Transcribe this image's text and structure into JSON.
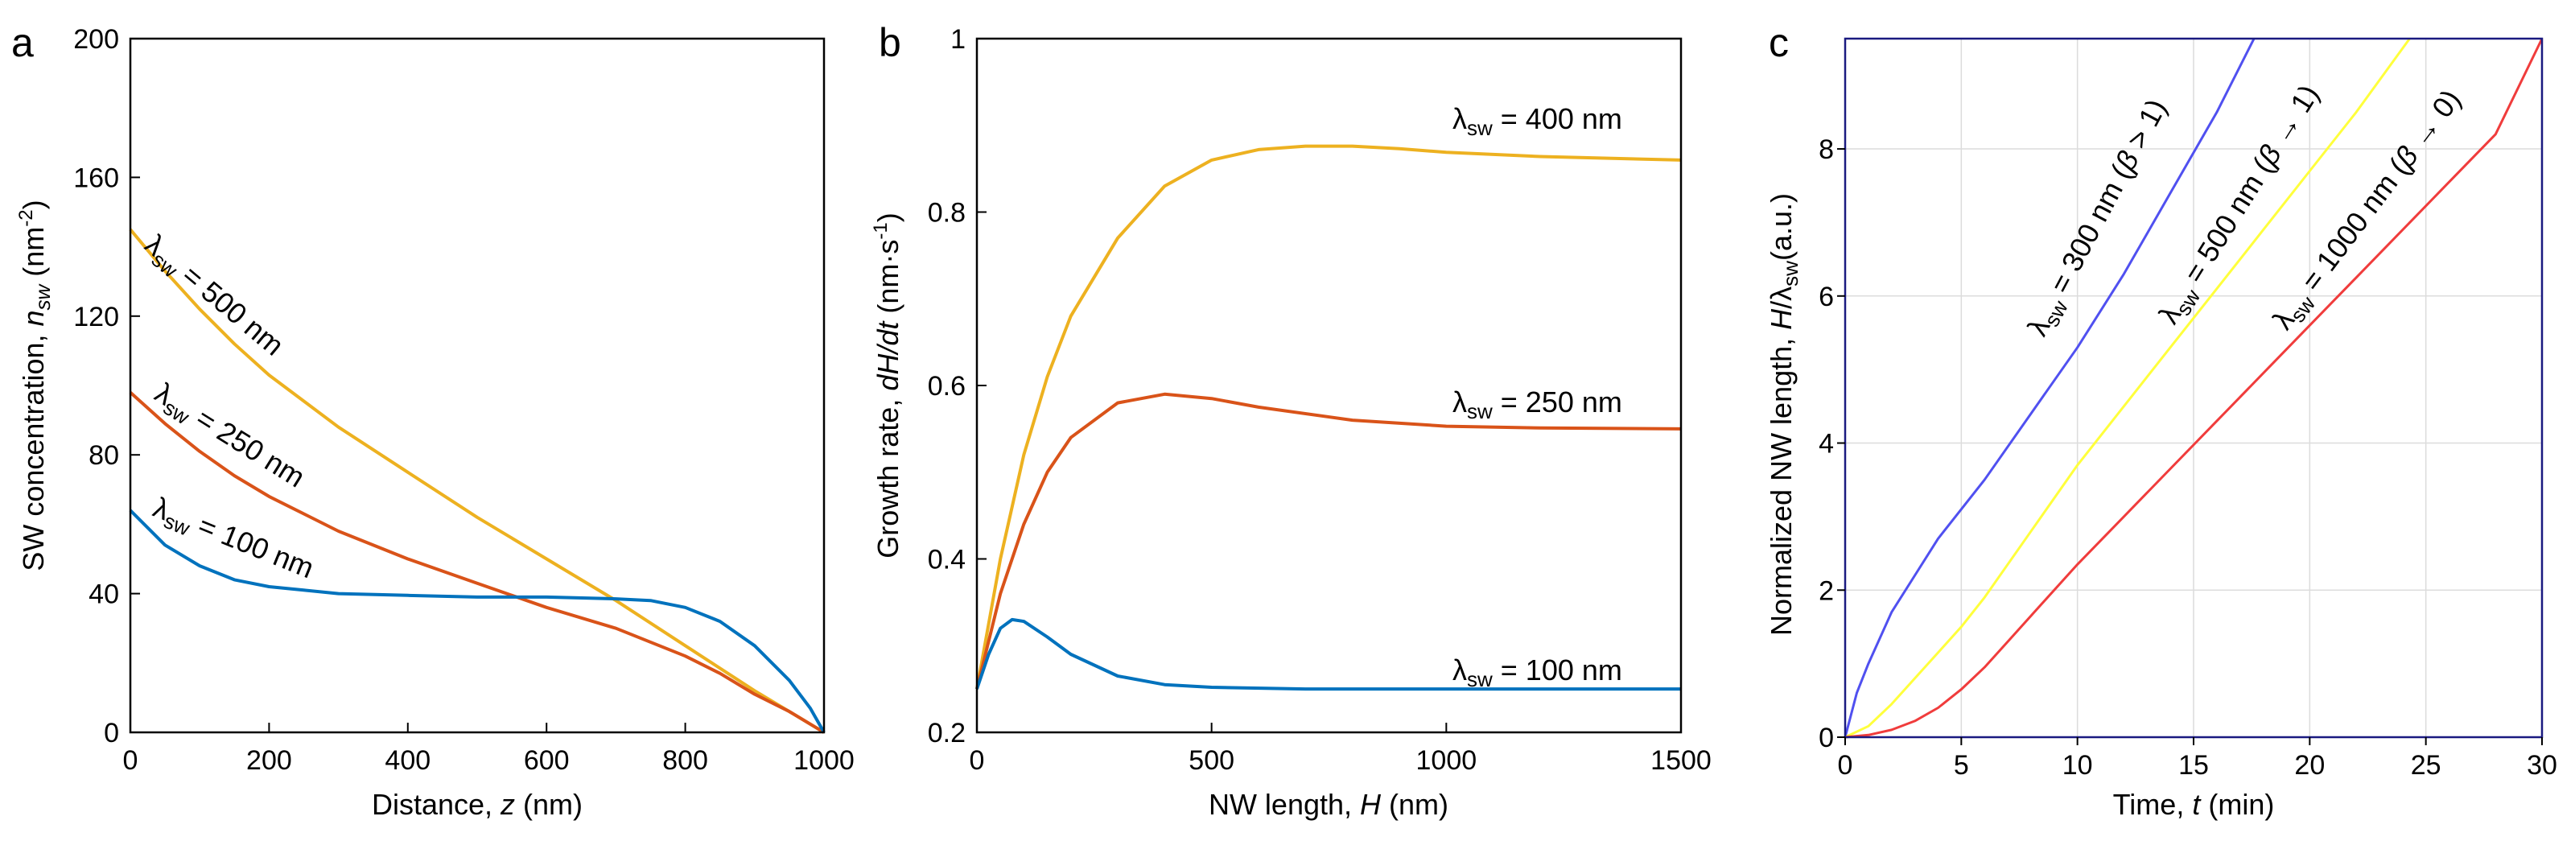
{
  "chart_data": [
    {
      "panel": "a",
      "type": "line",
      "xlabel": "Distance, z (nm)",
      "ylabel": "SW concentration, nsw (nm-2)",
      "ylabel_parts": {
        "pre": "SW concentration, ",
        "var": "n",
        "sub": "sw",
        "mid": " (nm",
        "sup": "-2",
        "post": ")"
      },
      "xlabel_parts": {
        "pre": "Distance, ",
        "var": "z",
        "post": " (nm)"
      },
      "xlim": [
        0,
        1000
      ],
      "ylim": [
        0,
        200
      ],
      "xticks": [
        0,
        200,
        400,
        600,
        800,
        1000
      ],
      "yticks": [
        0,
        40,
        80,
        120,
        160,
        200
      ],
      "series": [
        {
          "name": "λsw = 500 nm",
          "color": "#EDB120",
          "label": "= 500 nm",
          "x": [
            0,
            50,
            100,
            150,
            200,
            300,
            400,
            500,
            600,
            700,
            800,
            900,
            950,
            1000
          ],
          "y": [
            145,
            133,
            122,
            112,
            103,
            88,
            75,
            62,
            50,
            38,
            25,
            12,
            6,
            0
          ]
        },
        {
          "name": "λsw = 250 nm",
          "color": "#D95319",
          "label": "= 250 nm",
          "x": [
            0,
            50,
            100,
            150,
            200,
            300,
            400,
            500,
            600,
            700,
            800,
            850,
            900,
            950,
            1000
          ],
          "y": [
            98,
            89,
            81,
            74,
            68,
            58,
            50,
            43,
            36,
            30,
            22,
            17,
            11,
            6,
            0
          ]
        },
        {
          "name": "λsw = 100 nm",
          "color": "#0072BD",
          "label": "= 100 nm",
          "x": [
            0,
            50,
            100,
            150,
            200,
            250,
            300,
            400,
            500,
            600,
            700,
            750,
            800,
            850,
            900,
            950,
            980,
            1000
          ],
          "y": [
            64,
            54,
            48,
            44,
            42,
            41,
            40,
            39.5,
            39,
            39,
            38.5,
            38,
            36,
            32,
            25,
            15,
            7,
            0
          ]
        }
      ],
      "annotations": [
        {
          "sym": "λ",
          "sub": "sw",
          "text": "= 500 nm"
        },
        {
          "sym": "λ",
          "sub": "sw",
          "text": "= 250 nm"
        },
        {
          "sym": "λ",
          "sub": "sw",
          "text": "= 100 nm"
        }
      ]
    },
    {
      "panel": "b",
      "type": "line",
      "xlabel": "NW length, H (nm)",
      "ylabel": "Growth rate, dH/dt (nm·s-1)",
      "xlabel_parts": {
        "pre": "NW length,  ",
        "var": "H",
        "post": " (nm)"
      },
      "ylabel_parts": {
        "pre": "Growth  rate, ",
        "var": "dH/dt",
        "mid": " (nm·s",
        "sup": "-1",
        "post": ")"
      },
      "xlim": [
        0,
        1500
      ],
      "ylim": [
        0.2,
        1.0
      ],
      "xticks": [
        0,
        500,
        1000,
        1500
      ],
      "yticks": [
        0.2,
        0.4,
        0.6,
        0.8,
        1
      ],
      "series": [
        {
          "name": "λsw = 400 nm",
          "color": "#EDB120",
          "x": [
            0,
            50,
            100,
            150,
            200,
            300,
            400,
            500,
            600,
            700,
            800,
            900,
            1000,
            1200,
            1500
          ],
          "y": [
            0.25,
            0.4,
            0.52,
            0.61,
            0.68,
            0.77,
            0.83,
            0.86,
            0.872,
            0.876,
            0.876,
            0.873,
            0.869,
            0.864,
            0.86
          ]
        },
        {
          "name": "λsw = 250 nm",
          "color": "#D95319",
          "x": [
            0,
            50,
            100,
            150,
            200,
            300,
            400,
            500,
            600,
            800,
            1000,
            1200,
            1500
          ],
          "y": [
            0.25,
            0.36,
            0.44,
            0.5,
            0.54,
            0.58,
            0.59,
            0.585,
            0.575,
            0.56,
            0.553,
            0.551,
            0.55
          ]
        },
        {
          "name": "λsw = 100 nm",
          "color": "#0072BD",
          "x": [
            0,
            25,
            50,
            75,
            100,
            150,
            200,
            300,
            400,
            500,
            700,
            1000,
            1500
          ],
          "y": [
            0.25,
            0.29,
            0.32,
            0.33,
            0.328,
            0.31,
            0.29,
            0.265,
            0.255,
            0.252,
            0.25,
            0.25,
            0.25
          ]
        }
      ],
      "annotations": [
        {
          "sym": "λ",
          "sub": "sw",
          "text": " = 400 nm"
        },
        {
          "sym": "λ",
          "sub": "sw",
          "text": " = 250 nm"
        },
        {
          "sym": "λ",
          "sub": "sw",
          "text": " = 100 nm"
        }
      ]
    },
    {
      "panel": "c",
      "type": "line",
      "xlabel": "Time, t (min)",
      "ylabel": "Normalized NW length, H/λsw (a.u.)",
      "xlabel_parts": {
        "pre": "Time,  ",
        "var": "t",
        "post": " (min)"
      },
      "ylabel_parts": {
        "pre": "Normalized  NW length,  ",
        "var": "H",
        "mid": "/λ",
        "sub": "sw",
        "post": "(a.u.)"
      },
      "xlim": [
        0,
        30
      ],
      "ylim": [
        0,
        9.5
      ],
      "xticks": [
        0,
        5,
        10,
        15,
        20,
        25,
        30
      ],
      "yticks": [
        0,
        2,
        4,
        6,
        8
      ],
      "grid": true,
      "series": [
        {
          "name": "λsw = 300 nm (β > 1)",
          "color": "#5050F0",
          "x": [
            0,
            0.5,
            1,
            2,
            3,
            4,
            5,
            6,
            8,
            10,
            12,
            14,
            16,
            17.6
          ],
          "y": [
            0,
            0.6,
            1.0,
            1.7,
            2.2,
            2.7,
            3.1,
            3.5,
            4.4,
            5.3,
            6.3,
            7.4,
            8.5,
            9.5
          ]
        },
        {
          "name": "λsw = 500 nm (β → 1)",
          "color": "#FFFF3C",
          "x": [
            0,
            1,
            2,
            3,
            4,
            5,
            6,
            8,
            10,
            12,
            14,
            16,
            18,
            20,
            22,
            24.3
          ],
          "y": [
            0,
            0.15,
            0.45,
            0.8,
            1.15,
            1.5,
            1.9,
            2.8,
            3.7,
            4.5,
            5.3,
            6.1,
            6.9,
            7.7,
            8.5,
            9.5
          ]
        },
        {
          "name": "λsw = 1000 nm (β → 0)",
          "color": "#F03C3C",
          "x": [
            0,
            1,
            2,
            3,
            4,
            5,
            6,
            7,
            8,
            10,
            12,
            14,
            16,
            18,
            20,
            22,
            24,
            26,
            28,
            30
          ],
          "y": [
            0,
            0.03,
            0.1,
            0.22,
            0.4,
            0.65,
            0.95,
            1.3,
            1.65,
            2.35,
            3.0,
            3.65,
            4.3,
            4.95,
            5.6,
            6.25,
            6.9,
            7.55,
            8.2,
            9.5
          ]
        }
      ],
      "annotations": [
        {
          "sym": "λ",
          "sub": "sw",
          "text": " = 300 nm (",
          "greek": "β",
          "rel": " > 1)"
        },
        {
          "sym": "λ",
          "sub": "sw",
          "text": " = 500 nm (",
          "greek": "β",
          "rel": " → 1)"
        },
        {
          "sym": "λ",
          "sub": "sw",
          "text": " = 1000 nm (",
          "greek": "β",
          "rel": " → 0)"
        }
      ]
    }
  ],
  "colors": {
    "axis": "#000000",
    "grid": "#dcdcdc",
    "frame_c": "#1a1a80"
  }
}
